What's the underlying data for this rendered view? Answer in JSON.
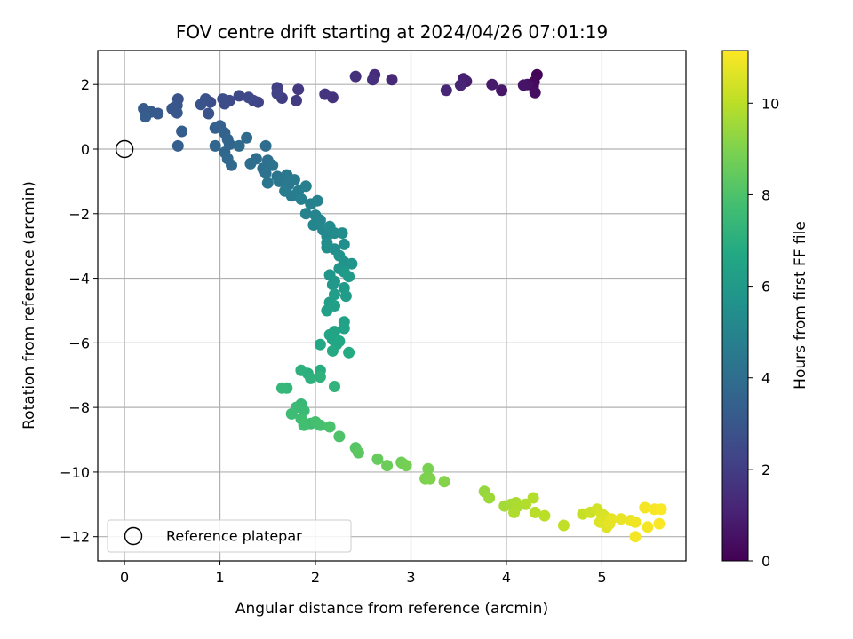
{
  "chart_data": {
    "type": "scatter",
    "title": "FOV centre drift starting at 2024/04/26 07:01:19",
    "xlabel": "Angular distance from reference (arcmin)",
    "ylabel": "Rotation from reference (arcmin)",
    "xlim": [
      -0.28,
      5.88
    ],
    "ylim": [
      -12.75,
      3.05
    ],
    "xticks": [
      0,
      1,
      2,
      3,
      4,
      5
    ],
    "yticks": [
      2,
      0,
      -2,
      -4,
      -6,
      -8,
      -10,
      -12
    ],
    "xtick_labels": [
      "0",
      "1",
      "2",
      "3",
      "4",
      "5"
    ],
    "ytick_labels": [
      "2",
      "0",
      "−2",
      "−4",
      "−6",
      "−8",
      "−10",
      "−12"
    ],
    "grid": true,
    "colormap": "viridis",
    "colorbar": {
      "label": "Hours from first FF file",
      "range": [
        0,
        11.15
      ],
      "ticks": [
        0,
        2,
        4,
        6,
        8,
        10
      ],
      "tick_labels": [
        "0",
        "2",
        "4",
        "6",
        "8",
        "10"
      ]
    },
    "reference": {
      "label": "Reference platepar",
      "x": 0,
      "y": 0
    },
    "legend": {
      "location": "lower-left",
      "entries": [
        "Reference platepar"
      ]
    },
    "points": [
      [
        4.32,
        2.3,
        0.1
      ],
      [
        4.29,
        2.08,
        0.2
      ],
      [
        4.28,
        1.95,
        0.3
      ],
      [
        4.3,
        1.75,
        0.4
      ],
      [
        4.22,
        2.0,
        0.5
      ],
      [
        4.18,
        1.98,
        0.6
      ],
      [
        3.95,
        1.82,
        0.7
      ],
      [
        3.85,
        2.0,
        0.8
      ],
      [
        3.58,
        2.1,
        0.9
      ],
      [
        3.55,
        2.18,
        1.0
      ],
      [
        3.52,
        1.98,
        1.1
      ],
      [
        3.37,
        1.82,
        1.2
      ],
      [
        2.8,
        2.15,
        1.3
      ],
      [
        2.62,
        2.3,
        1.4
      ],
      [
        2.6,
        2.15,
        1.5
      ],
      [
        2.42,
        2.25,
        1.55
      ],
      [
        2.18,
        1.6,
        1.6
      ],
      [
        2.1,
        1.7,
        1.7
      ],
      [
        1.82,
        1.85,
        1.8
      ],
      [
        1.8,
        1.5,
        1.9
      ],
      [
        1.65,
        1.58,
        2.0
      ],
      [
        1.6,
        1.9,
        2.1
      ],
      [
        1.6,
        1.72,
        2.15
      ],
      [
        1.4,
        1.45,
        2.2
      ],
      [
        1.35,
        1.5,
        2.3
      ],
      [
        1.3,
        1.6,
        2.4
      ],
      [
        1.2,
        1.65,
        2.45
      ],
      [
        1.1,
        1.5,
        2.5
      ],
      [
        1.05,
        1.4,
        2.6
      ],
      [
        1.03,
        1.55,
        2.65
      ],
      [
        0.9,
        1.45,
        2.7
      ],
      [
        0.85,
        1.55,
        2.75
      ],
      [
        0.88,
        1.1,
        2.8
      ],
      [
        0.8,
        1.38,
        2.85
      ],
      [
        0.56,
        1.55,
        2.9
      ],
      [
        0.55,
        1.35,
        2.95
      ],
      [
        0.5,
        1.25,
        3.0
      ],
      [
        0.55,
        1.12,
        3.05
      ],
      [
        0.35,
        1.1,
        3.1
      ],
      [
        0.28,
        1.15,
        3.15
      ],
      [
        0.2,
        1.25,
        3.2
      ],
      [
        0.22,
        1.0,
        3.25
      ],
      [
        0.6,
        0.55,
        3.3
      ],
      [
        0.56,
        0.1,
        3.35
      ],
      [
        0.95,
        0.65,
        3.4
      ],
      [
        1.0,
        0.72,
        3.45
      ],
      [
        1.05,
        0.5,
        3.5
      ],
      [
        1.08,
        0.3,
        3.55
      ],
      [
        1.1,
        0.15,
        3.6
      ],
      [
        0.95,
        0.1,
        3.65
      ],
      [
        1.05,
        -0.1,
        3.7
      ],
      [
        1.08,
        -0.3,
        3.75
      ],
      [
        1.12,
        -0.5,
        3.8
      ],
      [
        1.2,
        0.1,
        3.85
      ],
      [
        1.28,
        0.35,
        3.9
      ],
      [
        1.48,
        0.1,
        3.95
      ],
      [
        1.38,
        -0.3,
        4.0
      ],
      [
        1.32,
        -0.45,
        4.05
      ],
      [
        1.5,
        -0.35,
        4.1
      ],
      [
        1.45,
        -0.6,
        4.15
      ],
      [
        1.48,
        -0.75,
        4.2
      ],
      [
        1.55,
        -0.5,
        4.25
      ],
      [
        1.6,
        -0.85,
        4.3
      ],
      [
        1.5,
        -1.05,
        4.35
      ],
      [
        1.62,
        -1.0,
        4.4
      ],
      [
        1.7,
        -0.8,
        4.45
      ],
      [
        1.72,
        -1.1,
        4.5
      ],
      [
        1.78,
        -0.95,
        4.55
      ],
      [
        1.68,
        -1.3,
        4.6
      ],
      [
        1.75,
        -1.45,
        4.65
      ],
      [
        1.82,
        -1.3,
        4.7
      ],
      [
        1.9,
        -1.15,
        4.75
      ],
      [
        1.85,
        -1.55,
        4.8
      ],
      [
        1.95,
        -1.7,
        4.85
      ],
      [
        2.02,
        -1.6,
        4.9
      ],
      [
        1.9,
        -2.0,
        4.95
      ],
      [
        2.0,
        -2.05,
        5.0
      ],
      [
        1.98,
        -2.35,
        5.05
      ],
      [
        2.05,
        -2.2,
        5.1
      ],
      [
        2.08,
        -2.5,
        5.15
      ],
      [
        2.12,
        -2.7,
        5.2
      ],
      [
        2.15,
        -2.4,
        5.25
      ],
      [
        2.2,
        -2.6,
        5.3
      ],
      [
        2.28,
        -2.6,
        5.35
      ],
      [
        2.12,
        -2.9,
        5.4
      ],
      [
        2.12,
        -3.05,
        5.45
      ],
      [
        2.2,
        -3.1,
        5.5
      ],
      [
        2.3,
        -2.95,
        5.55
      ],
      [
        2.25,
        -3.3,
        5.6
      ],
      [
        2.3,
        -3.5,
        5.65
      ],
      [
        2.38,
        -3.55,
        5.7
      ],
      [
        2.25,
        -3.7,
        5.75
      ],
      [
        2.15,
        -3.9,
        5.8
      ],
      [
        2.2,
        -4.1,
        5.85
      ],
      [
        2.18,
        -4.2,
        5.9
      ],
      [
        2.3,
        -3.8,
        5.95
      ],
      [
        2.35,
        -3.95,
        6.0
      ],
      [
        2.3,
        -4.3,
        6.05
      ],
      [
        2.32,
        -4.55,
        6.1
      ],
      [
        2.2,
        -4.5,
        6.15
      ],
      [
        2.15,
        -4.75,
        6.2
      ],
      [
        2.12,
        -5.0,
        6.25
      ],
      [
        2.2,
        -4.85,
        6.3
      ],
      [
        2.3,
        -5.35,
        6.35
      ],
      [
        2.3,
        -5.55,
        6.4
      ],
      [
        2.2,
        -5.65,
        6.45
      ],
      [
        2.15,
        -5.75,
        6.5
      ],
      [
        2.18,
        -5.9,
        6.55
      ],
      [
        2.22,
        -6.05,
        6.6
      ],
      [
        2.25,
        -5.95,
        6.65
      ],
      [
        2.05,
        -6.05,
        6.7
      ],
      [
        2.18,
        -6.25,
        6.75
      ],
      [
        2.35,
        -6.3,
        6.8
      ],
      [
        2.05,
        -6.85,
        6.9
      ],
      [
        1.92,
        -6.95,
        7.0
      ],
      [
        1.85,
        -6.85,
        7.05
      ],
      [
        1.95,
        -7.1,
        7.1
      ],
      [
        2.05,
        -7.05,
        7.15
      ],
      [
        2.2,
        -7.35,
        7.2
      ],
      [
        1.7,
        -7.4,
        7.3
      ],
      [
        1.65,
        -7.4,
        7.35
      ],
      [
        1.85,
        -7.9,
        7.4
      ],
      [
        1.88,
        -8.1,
        7.5
      ],
      [
        1.8,
        -8.0,
        7.55
      ],
      [
        1.75,
        -8.2,
        7.6
      ],
      [
        1.95,
        -8.5,
        7.65
      ],
      [
        1.85,
        -8.35,
        7.7
      ],
      [
        1.88,
        -8.55,
        7.75
      ],
      [
        2.0,
        -8.45,
        7.8
      ],
      [
        2.05,
        -8.55,
        7.85
      ],
      [
        2.15,
        -8.6,
        7.9
      ],
      [
        2.25,
        -8.9,
        8.0
      ],
      [
        2.42,
        -9.25,
        8.2
      ],
      [
        2.45,
        -9.4,
        8.3
      ],
      [
        2.65,
        -9.6,
        8.5
      ],
      [
        2.75,
        -9.8,
        8.6
      ],
      [
        2.9,
        -9.7,
        8.7
      ],
      [
        2.92,
        -9.75,
        8.75
      ],
      [
        2.95,
        -9.8,
        8.8
      ],
      [
        3.18,
        -9.9,
        8.9
      ],
      [
        3.15,
        -10.2,
        8.95
      ],
      [
        3.2,
        -10.2,
        9.0
      ],
      [
        3.35,
        -10.3,
        9.1
      ],
      [
        3.77,
        -10.6,
        9.4
      ],
      [
        3.82,
        -10.8,
        9.5
      ],
      [
        3.98,
        -11.05,
        9.6
      ],
      [
        4.05,
        -11.0,
        9.65
      ],
      [
        4.1,
        -10.95,
        9.7
      ],
      [
        4.12,
        -11.05,
        9.75
      ],
      [
        4.08,
        -11.25,
        9.8
      ],
      [
        4.2,
        -11.0,
        9.85
      ],
      [
        4.28,
        -10.8,
        9.9
      ],
      [
        4.3,
        -11.25,
        9.95
      ],
      [
        4.4,
        -11.35,
        10.0
      ],
      [
        4.6,
        -11.65,
        10.1
      ],
      [
        4.8,
        -11.3,
        10.2
      ],
      [
        4.88,
        -11.25,
        10.3
      ],
      [
        4.95,
        -11.15,
        10.4
      ],
      [
        5.0,
        -11.3,
        10.45
      ],
      [
        5.02,
        -11.35,
        10.5
      ],
      [
        5.05,
        -11.45,
        10.55
      ],
      [
        4.98,
        -11.55,
        10.6
      ],
      [
        5.05,
        -11.7,
        10.65
      ],
      [
        5.08,
        -11.6,
        10.7
      ],
      [
        5.1,
        -11.45,
        10.75
      ],
      [
        5.2,
        -11.45,
        10.8
      ],
      [
        5.3,
        -11.5,
        10.85
      ],
      [
        5.35,
        -11.55,
        10.9
      ],
      [
        5.35,
        -12.0,
        10.95
      ],
      [
        5.45,
        -11.1,
        11.0
      ],
      [
        5.48,
        -11.7,
        11.0
      ],
      [
        5.55,
        -11.15,
        11.05
      ],
      [
        5.6,
        -11.6,
        11.1
      ],
      [
        5.62,
        -11.15,
        11.1
      ]
    ]
  }
}
